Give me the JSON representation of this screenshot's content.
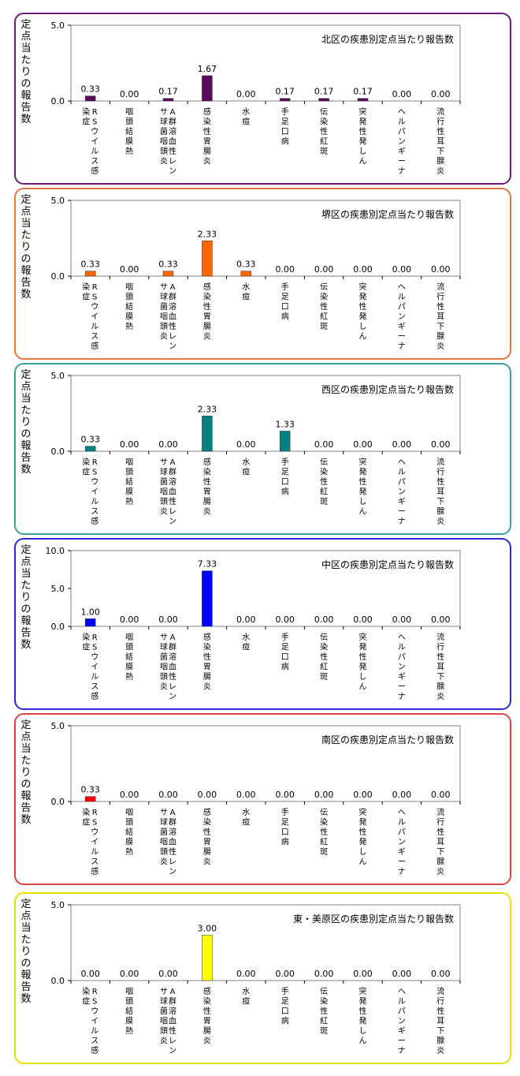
{
  "categories": [
    "RSウイルス感染症",
    "咽頭結膜熱",
    "A群溶血性レンサ球菌咽頭炎",
    "感染性胃腸炎",
    "水痘",
    "手足口病",
    "伝染性紅斑",
    "突発性発しん",
    "ヘルパンギーナ",
    "流行性耳下腺炎"
  ],
  "y_axis_title": "定点当たりの報告数",
  "chart_data": [
    {
      "type": "bar",
      "title": "北区の疾患別定点当たり報告数",
      "ylim": [
        0,
        5
      ],
      "yticks": [
        "0.0",
        "5.0"
      ],
      "color": "#5a0a5a",
      "border": "#6b1a7a",
      "values": [
        0.33,
        0.0,
        0.17,
        1.67,
        0.0,
        0.17,
        0.17,
        0.17,
        0.0,
        0.0
      ],
      "labels": [
        "0.33",
        "0.00",
        "0.17",
        "1.67",
        "0.00",
        "0.17",
        "0.17",
        "0.17",
        "0.00",
        "0.00"
      ]
    },
    {
      "type": "bar",
      "title": "堺区の疾患別定点当たり報告数",
      "ylim": [
        0,
        5
      ],
      "yticks": [
        "0.0",
        "5.0"
      ],
      "color": "#ff6600",
      "border": "#e07840",
      "values": [
        0.33,
        0.0,
        0.33,
        2.33,
        0.33,
        0.0,
        0.0,
        0.0,
        0.0,
        0.0
      ],
      "labels": [
        "0.33",
        "0.00",
        "0.33",
        "2.33",
        "0.33",
        "0.00",
        "0.00",
        "0.00",
        "0.00",
        "0.00"
      ]
    },
    {
      "type": "bar",
      "title": "西区の疾患別定点当たり報告数",
      "ylim": [
        0,
        5
      ],
      "yticks": [
        "0.0",
        "5.0"
      ],
      "color": "#008080",
      "border": "#3aa0a0",
      "values": [
        0.33,
        0.0,
        0.0,
        2.33,
        0.0,
        1.33,
        0.0,
        0.0,
        0.0,
        0.0
      ],
      "labels": [
        "0.33",
        "0.00",
        "0.00",
        "2.33",
        "0.00",
        "1.33",
        "0.00",
        "0.00",
        "0.00",
        "0.00"
      ]
    },
    {
      "type": "bar",
      "title": "中区の疾患別定点当たり報告数",
      "ylim": [
        0,
        10
      ],
      "yticks": [
        "0.0",
        "5.0",
        "10.0"
      ],
      "color": "#0000ff",
      "border": "#2a2ad0",
      "values": [
        1.0,
        0.0,
        0.0,
        7.33,
        0.0,
        0.0,
        0.0,
        0.0,
        0.0,
        0.0
      ],
      "labels": [
        "1.00",
        "0.00",
        "0.00",
        "7.33",
        "0.00",
        "0.00",
        "0.00",
        "0.00",
        "0.00",
        "0.00"
      ]
    },
    {
      "type": "bar",
      "title": "南区の疾患別定点当たり報告数",
      "ylim": [
        0,
        5
      ],
      "yticks": [
        "0.0",
        "5.0"
      ],
      "color": "#ff0000",
      "border": "#e04040",
      "values": [
        0.33,
        0.0,
        0.0,
        0.0,
        0.0,
        0.0,
        0.0,
        0.0,
        0.0,
        0.0
      ],
      "labels": [
        "0.33",
        "0.00",
        "0.00",
        "0.00",
        "0.00",
        "0.00",
        "0.00",
        "0.00",
        "0.00",
        "0.00"
      ]
    },
    {
      "type": "bar",
      "title": "東・美原区の疾患別定点当たり報告数",
      "ylim": [
        0,
        5
      ],
      "yticks": [
        "0.0",
        "5.0"
      ],
      "color": "#ffff00",
      "border": "#e8e000",
      "values": [
        0.0,
        0.0,
        0.0,
        3.0,
        0.0,
        0.0,
        0.0,
        0.0,
        0.0,
        0.0
      ],
      "labels": [
        "0.00",
        "0.00",
        "0.00",
        "3.00",
        "0.00",
        "0.00",
        "0.00",
        "0.00",
        "0.00",
        "0.00"
      ]
    }
  ]
}
